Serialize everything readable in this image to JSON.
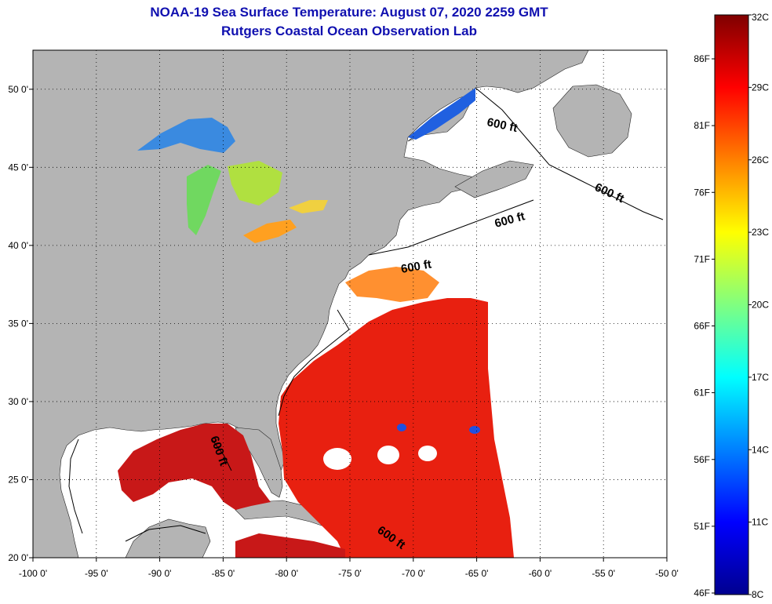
{
  "title": {
    "line1": "NOAA-19 Sea Surface Temperature:  August 07, 2020 2259 GMT",
    "line2": "Rutgers Coastal Ocean Observation Lab"
  },
  "map": {
    "lon_range": [
      -100,
      -50
    ],
    "lat_range": [
      20,
      52.5
    ],
    "lon_ticks": [
      "-100 0'",
      "-95 0'",
      "-90 0'",
      "-85 0'",
      "-80 0'",
      "-75 0'",
      "-70 0'",
      "-65 0'",
      "-60 0'",
      "-55 0'",
      "-50 0'"
    ],
    "lat_ticks": [
      "50 0'",
      "45 0'",
      "40 0'",
      "35 0'",
      "30 0'",
      "25 0'",
      "20 0'"
    ],
    "grid": "dotted",
    "land_color": "#b4b4b4",
    "contour_labels": [
      "600 ft",
      "600 ft",
      "600 ft",
      "600 ft",
      "600 ft",
      "600 ft"
    ]
  },
  "colorbar": {
    "celsius": [
      "32C",
      "29C",
      "26C",
      "23C",
      "20C",
      "17C",
      "14C",
      "11C",
      "8C"
    ],
    "fahrenheit": [
      "86F",
      "81F",
      "76F",
      "71F",
      "66F",
      "61F",
      "56F",
      "51F",
      "46F"
    ],
    "colors": [
      "#7f0000",
      "#ff0000",
      "#ff8000",
      "#ffff00",
      "#80ff80",
      "#00ffff",
      "#0080ff",
      "#0000ff",
      "#00008f"
    ]
  }
}
